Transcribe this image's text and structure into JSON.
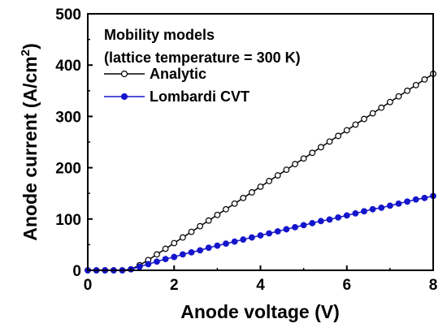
{
  "chart_data": {
    "type": "line",
    "title": "",
    "xlabel": "Anode voltage (V)",
    "ylabel_main": "Anode current (A/cm",
    "ylabel_sup": "2",
    "ylabel_close": ")",
    "xlim": [
      0,
      8
    ],
    "ylim": [
      0,
      500
    ],
    "x_ticks": [
      0,
      2,
      4,
      6,
      8
    ],
    "y_ticks": [
      0,
      100,
      200,
      300,
      400,
      500
    ],
    "grid": false,
    "legend_placement": "top-left",
    "legend_title_line1": "Mobility models",
    "legend_title_line2": "(lattice temperature = 300 K)",
    "series": [
      {
        "name": "Analytic",
        "color": "#000000",
        "marker": "open-circle",
        "x": [
          0,
          0.2,
          0.4,
          0.6,
          0.8,
          1.0,
          1.2,
          1.4,
          1.6,
          1.8,
          2.0,
          2.2,
          2.4,
          2.6,
          2.8,
          3.0,
          3.2,
          3.4,
          3.6,
          3.8,
          4.0,
          4.2,
          4.4,
          4.6,
          4.8,
          5.0,
          5.2,
          5.4,
          5.6,
          5.8,
          6.0,
          6.2,
          6.4,
          6.6,
          6.8,
          7.0,
          7.2,
          7.4,
          7.6,
          7.8,
          8.0
        ],
        "y": [
          0,
          0,
          0,
          0,
          0,
          2,
          10,
          20,
          31,
          42,
          53,
          64,
          75,
          86,
          97,
          108,
          119,
          130,
          141,
          152,
          163,
          174,
          185,
          196,
          207,
          218,
          229,
          240,
          251,
          262,
          273,
          284,
          295,
          306,
          317,
          328,
          339,
          350,
          361,
          372,
          383
        ]
      },
      {
        "name": "Lombardi CVT",
        "color": "#1515cc",
        "marker": "filled-circle",
        "x": [
          0,
          0.2,
          0.4,
          0.6,
          0.8,
          1.0,
          1.2,
          1.4,
          1.6,
          1.8,
          2.0,
          2.2,
          2.4,
          2.6,
          2.8,
          3.0,
          3.2,
          3.4,
          3.6,
          3.8,
          4.0,
          4.2,
          4.4,
          4.6,
          4.8,
          5.0,
          5.2,
          5.4,
          5.6,
          5.8,
          6.0,
          6.2,
          6.4,
          6.6,
          6.8,
          7.0,
          7.2,
          7.4,
          7.6,
          7.8,
          8.0
        ],
        "y": [
          0,
          0,
          0,
          0,
          0,
          2,
          7,
          12,
          17,
          22,
          26,
          31,
          35,
          39,
          44,
          48,
          52,
          56,
          60,
          64,
          68,
          72,
          76,
          80,
          84,
          88,
          92,
          96,
          99,
          103,
          107,
          111,
          115,
          119,
          122,
          126,
          130,
          134,
          138,
          141,
          145
        ]
      }
    ]
  }
}
